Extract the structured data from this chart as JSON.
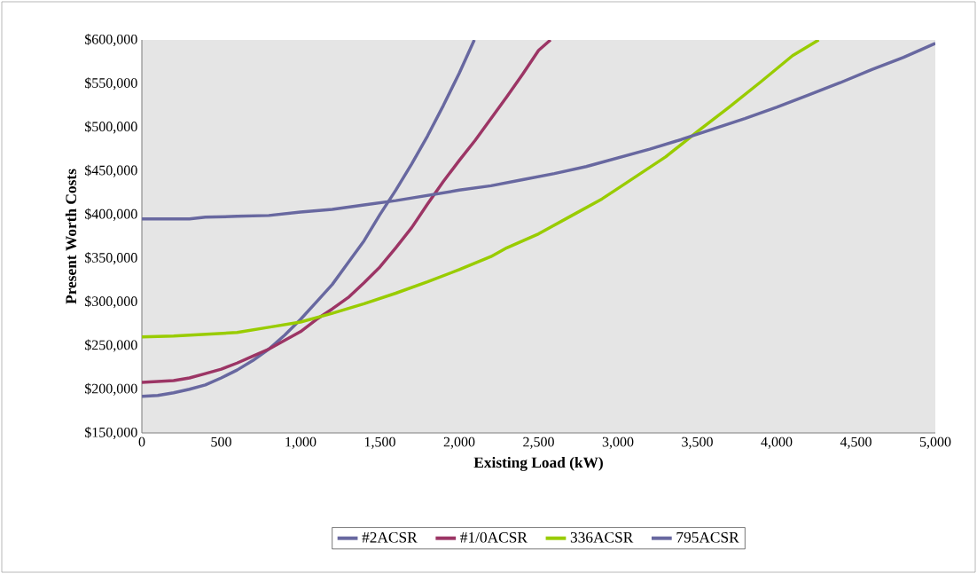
{
  "chart_data": {
    "type": "line",
    "xlabel": "Existing Load (kW)",
    "ylabel": "Present Worth Costs",
    "xlim": [
      0,
      5000
    ],
    "ylim": [
      150000,
      600000
    ],
    "xticks": [
      0,
      500,
      {
        "value": 1000,
        "label": "1,000"
      },
      {
        "value": 1500,
        "label": "1,500"
      },
      {
        "value": 2000,
        "label": "2,000"
      },
      {
        "value": 2500,
        "label": "2,500"
      },
      {
        "value": 3000,
        "label": "3,000"
      },
      {
        "value": 3500,
        "label": "3,500"
      },
      {
        "value": 4000,
        "label": "4,000"
      },
      {
        "value": 4500,
        "label": "4,500"
      },
      {
        "value": 5000,
        "label": "5,000"
      }
    ],
    "yticks": [
      {
        "value": 150000,
        "label": "$150,000"
      },
      {
        "value": 200000,
        "label": "$200,000"
      },
      {
        "value": 250000,
        "label": "$250,000"
      },
      {
        "value": 300000,
        "label": "$300,000"
      },
      {
        "value": 350000,
        "label": "$350,000"
      },
      {
        "value": 400000,
        "label": "$400,000"
      },
      {
        "value": 450000,
        "label": "$450,000"
      },
      {
        "value": 500000,
        "label": "$500,000"
      },
      {
        "value": 550000,
        "label": "$550,000"
      },
      {
        "value": 600000,
        "label": "$600,000"
      }
    ],
    "grid": false,
    "legend": "bottom",
    "marker": "none",
    "line_style": "solid",
    "series": [
      {
        "name": "#2ACSR",
        "color": "#6868a0",
        "x": [
          0,
          100,
          200,
          300,
          400,
          500,
          600,
          700,
          800,
          900,
          1000,
          1100,
          1200,
          1300,
          1400,
          1500,
          1600,
          1700,
          1800,
          1900,
          2000,
          2095
        ],
        "values": [
          192000,
          193000,
          196000,
          200000,
          205000,
          213000,
          222000,
          233000,
          246000,
          262000,
          280000,
          300000,
          320000,
          345000,
          370000,
          400000,
          428000,
          458000,
          490000,
          525000,
          562000,
          600000
        ]
      },
      {
        "name": "#1/0ACSR",
        "color": "#9c3565",
        "x": [
          0,
          200,
          300,
          400,
          500,
          600,
          700,
          800,
          900,
          1000,
          1100,
          1200,
          1300,
          1400,
          1500,
          1600,
          1700,
          1800,
          1900,
          2000,
          2100,
          2200,
          2300,
          2400,
          2500,
          2575
        ],
        "values": [
          208000,
          210000,
          213000,
          218000,
          223000,
          230000,
          238000,
          246000,
          256000,
          266000,
          280000,
          292000,
          305000,
          322000,
          340000,
          362000,
          385000,
          412000,
          438000,
          462000,
          485000,
          510000,
          535000,
          561000,
          588000,
          600000
        ]
      },
      {
        "name": "336ACSR",
        "color": "#99cc00",
        "x": [
          0,
          200,
          400,
          600,
          800,
          1000,
          1200,
          1400,
          1600,
          1800,
          2000,
          2200,
          2300,
          2500,
          2700,
          2900,
          3000,
          3100,
          3300,
          3500,
          3700,
          3900,
          4100,
          4265
        ],
        "values": [
          260000,
          261000,
          263000,
          265000,
          271000,
          277000,
          287000,
          298000,
          310000,
          323000,
          337000,
          352000,
          362000,
          378000,
          398000,
          418000,
          430000,
          442000,
          466000,
          495000,
          523000,
          552000,
          582000,
          600000
        ]
      },
      {
        "name": "795ACSR",
        "color": "#6868a0",
        "x": [
          0,
          300,
          400,
          600,
          800,
          1000,
          1200,
          1400,
          1600,
          1800,
          2000,
          2200,
          2400,
          2600,
          2800,
          3000,
          3200,
          3400,
          3600,
          3800,
          4000,
          4200,
          4400,
          4600,
          4800,
          5000
        ],
        "values": [
          395000,
          395000,
          397000,
          398000,
          399000,
          403000,
          406000,
          411000,
          416000,
          422000,
          428000,
          433000,
          440000,
          447000,
          455000,
          465000,
          475000,
          486000,
          498000,
          510000,
          523000,
          537000,
          551000,
          566000,
          580000,
          596000
        ]
      }
    ]
  }
}
